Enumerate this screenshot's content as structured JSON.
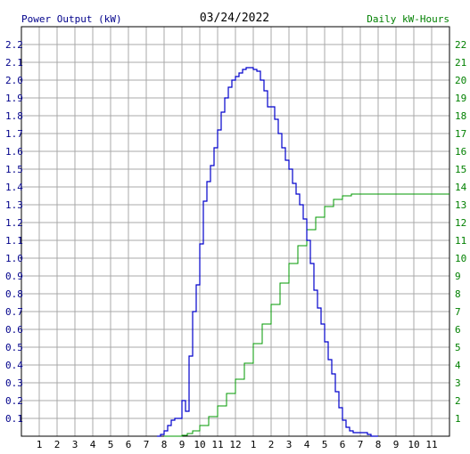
{
  "header": {
    "left_label": "Power Output (kW)",
    "date": "03/24/2022",
    "right_label": "Daily kW-Hours"
  },
  "colors": {
    "power": "#0000cc",
    "energy": "#009900",
    "grid": "#a8a8a8",
    "left_axis_text": "#00008b",
    "right_axis_text": "#008000"
  },
  "chart_data": {
    "type": "line",
    "title": "03/24/2022",
    "xlabel": "",
    "grid": true,
    "x_tick_labels": [
      "1",
      "2",
      "3",
      "4",
      "5",
      "6",
      "7",
      "8",
      "9",
      "10",
      "11",
      "12",
      "1",
      "2",
      "3",
      "4",
      "5",
      "6",
      "7",
      "8",
      "9",
      "10",
      "11"
    ],
    "xlim": [
      0,
      24
    ],
    "ylim_left": [
      0,
      2.3
    ],
    "left_tick_labels": [
      "0.1",
      "0.2",
      "0.3",
      "0.4",
      "0.5",
      "0.6",
      "0.7",
      "0.8",
      "0.9",
      "1.0",
      "1.1",
      "1.2",
      "1.3",
      "1.4",
      "1.5",
      "1.6",
      "1.7",
      "1.8",
      "1.9",
      "2.0",
      "2.1",
      "2.2"
    ],
    "ylim_right": [
      0,
      23
    ],
    "right_tick_labels": [
      "1",
      "2",
      "3",
      "4",
      "5",
      "6",
      "7",
      "8",
      "9",
      "10",
      "11",
      "12",
      "13",
      "14",
      "15",
      "16",
      "17",
      "18",
      "19",
      "20",
      "21",
      "22"
    ],
    "series": [
      {
        "name": "Power Output (kW)",
        "axis": "left",
        "x": [
          7.6,
          7.8,
          8.0,
          8.2,
          8.4,
          8.6,
          8.8,
          9.0,
          9.2,
          9.4,
          9.6,
          9.8,
          10.0,
          10.2,
          10.4,
          10.6,
          10.8,
          11.0,
          11.2,
          11.4,
          11.6,
          11.8,
          12.0,
          12.2,
          12.4,
          12.6,
          12.8,
          13.0,
          13.2,
          13.4,
          13.6,
          13.8,
          14.0,
          14.2,
          14.4,
          14.6,
          14.8,
          15.0,
          15.2,
          15.4,
          15.6,
          15.8,
          16.0,
          16.2,
          16.4,
          16.6,
          16.8,
          17.0,
          17.2,
          17.4,
          17.6,
          17.8,
          18.0,
          18.2,
          18.4,
          18.6,
          18.8,
          19.0,
          19.2,
          19.4,
          19.6,
          19.8,
          20.0
        ],
        "values": [
          0.0,
          0.01,
          0.03,
          0.06,
          0.09,
          0.1,
          0.1,
          0.2,
          0.14,
          0.45,
          0.7,
          0.85,
          1.08,
          1.32,
          1.43,
          1.52,
          1.62,
          1.72,
          1.82,
          1.9,
          1.96,
          2.0,
          2.02,
          2.04,
          2.06,
          2.07,
          2.07,
          2.06,
          2.05,
          2.0,
          1.94,
          1.85,
          1.85,
          1.78,
          1.7,
          1.62,
          1.55,
          1.5,
          1.42,
          1.36,
          1.3,
          1.22,
          1.1,
          0.97,
          0.82,
          0.72,
          0.63,
          0.53,
          0.43,
          0.35,
          0.25,
          0.16,
          0.09,
          0.05,
          0.03,
          0.02,
          0.02,
          0.02,
          0.02,
          0.01,
          0.0,
          0.0,
          0.0
        ]
      },
      {
        "name": "Daily kW-Hours",
        "axis": "right",
        "x": [
          8.0,
          9.0,
          9.3,
          9.6,
          10.0,
          10.5,
          11.0,
          11.5,
          12.0,
          12.5,
          13.0,
          13.5,
          14.0,
          14.5,
          15.0,
          15.5,
          16.0,
          16.5,
          17.0,
          17.5,
          18.0,
          18.5,
          19.0,
          19.5,
          20.0,
          21.0,
          22.0,
          23.0,
          24.0
        ],
        "values": [
          0.0,
          0.05,
          0.15,
          0.3,
          0.6,
          1.1,
          1.7,
          2.4,
          3.2,
          4.1,
          5.2,
          6.3,
          7.4,
          8.6,
          9.7,
          10.7,
          11.6,
          12.3,
          12.9,
          13.3,
          13.5,
          13.6,
          13.6,
          13.6,
          13.6,
          13.6,
          13.6,
          13.6,
          13.6
        ]
      }
    ]
  }
}
